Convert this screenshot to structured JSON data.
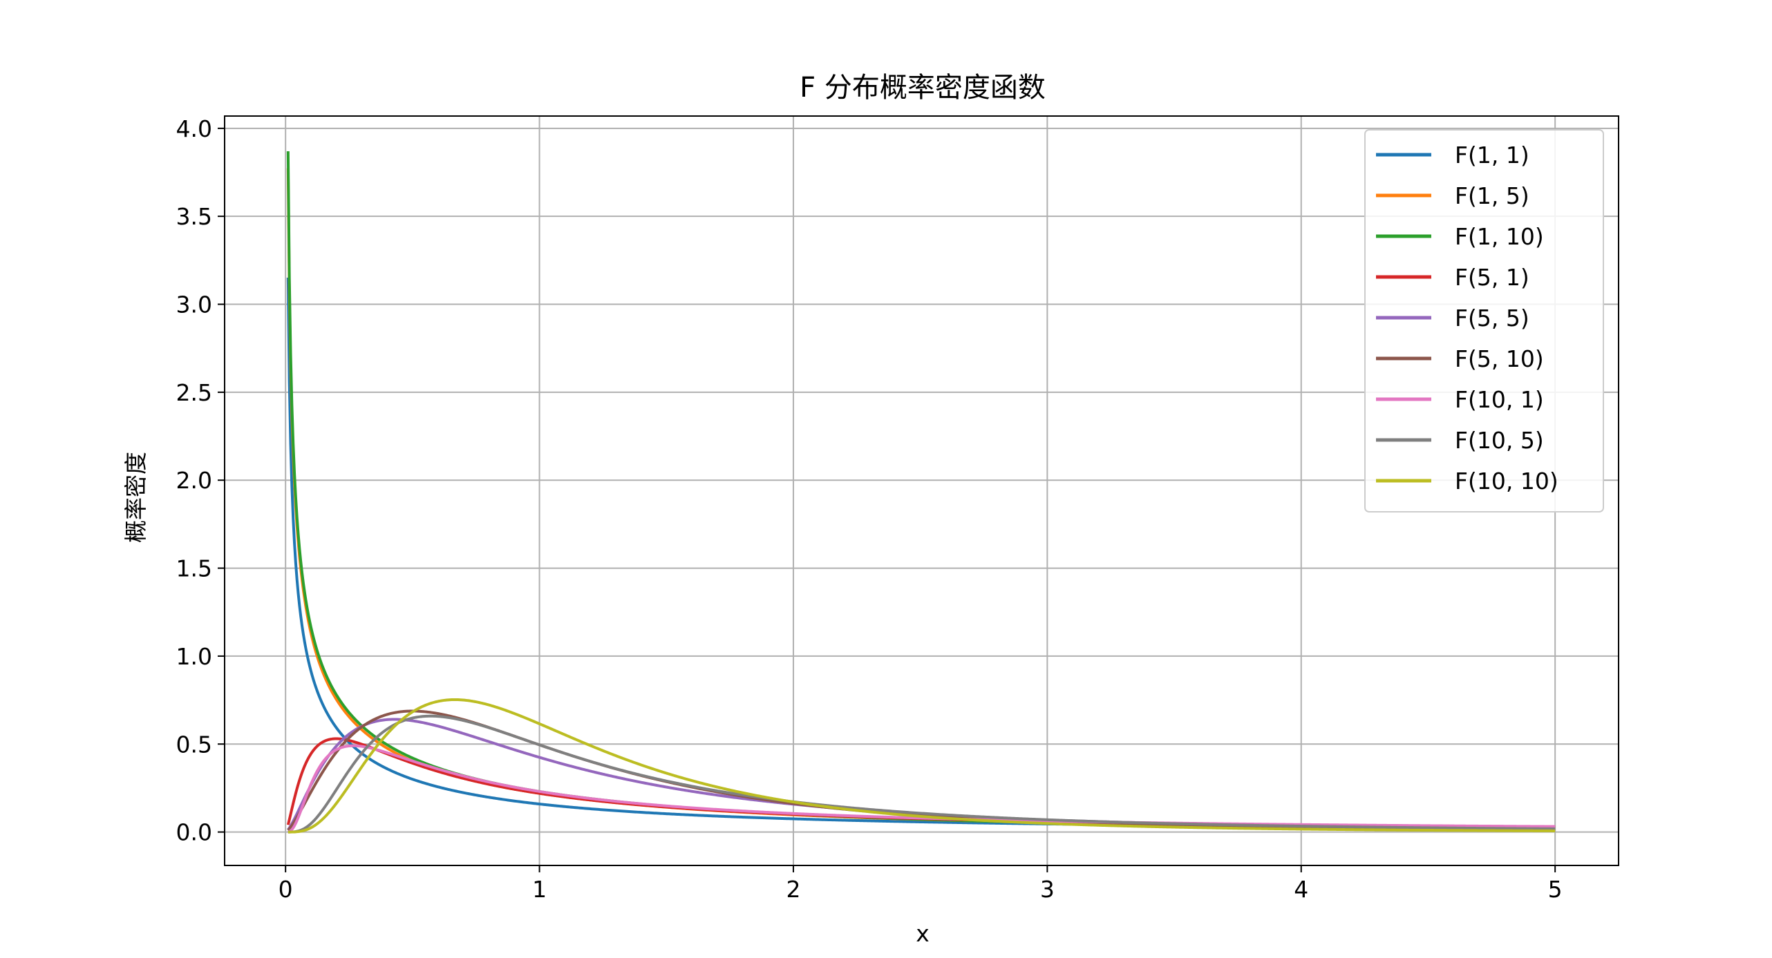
{
  "chart_data": {
    "type": "line",
    "title": "F 分布概率密度函数",
    "xlabel": "x",
    "ylabel": "概率密度",
    "xlim": [
      -0.24,
      5.25
    ],
    "ylim": [
      -0.19,
      4.07
    ],
    "xticks": [
      0,
      1,
      2,
      3,
      4,
      5
    ],
    "xtick_labels": [
      "0",
      "1",
      "2",
      "3",
      "4",
      "5"
    ],
    "yticks": [
      0.0,
      0.5,
      1.0,
      1.5,
      2.0,
      2.5,
      3.0,
      3.5,
      4.0
    ],
    "ytick_labels": [
      "0.0",
      "0.5",
      "1.0",
      "1.5",
      "2.0",
      "2.5",
      "3.0",
      "3.5",
      "4.0"
    ],
    "grid": true,
    "legend_position": "top-right",
    "x_range": [
      0.01,
      5
    ],
    "series": [
      {
        "name": "F(1, 1)",
        "d1": 1,
        "d2": 1,
        "color": "#1f77b4"
      },
      {
        "name": "F(1, 5)",
        "d1": 1,
        "d2": 5,
        "color": "#ff7f0e"
      },
      {
        "name": "F(1, 10)",
        "d1": 1,
        "d2": 10,
        "color": "#2ca02c"
      },
      {
        "name": "F(5, 1)",
        "d1": 5,
        "d2": 1,
        "color": "#d62728"
      },
      {
        "name": "F(5, 5)",
        "d1": 5,
        "d2": 5,
        "color": "#9467bd"
      },
      {
        "name": "F(5, 10)",
        "d1": 5,
        "d2": 10,
        "color": "#8c564b"
      },
      {
        "name": "F(10, 1)",
        "d1": 10,
        "d2": 1,
        "color": "#e377c2"
      },
      {
        "name": "F(10, 5)",
        "d1": 10,
        "d2": 5,
        "color": "#7f7f7f"
      },
      {
        "name": "F(10, 10)",
        "d1": 10,
        "d2": 10,
        "color": "#bcbd22"
      }
    ]
  }
}
